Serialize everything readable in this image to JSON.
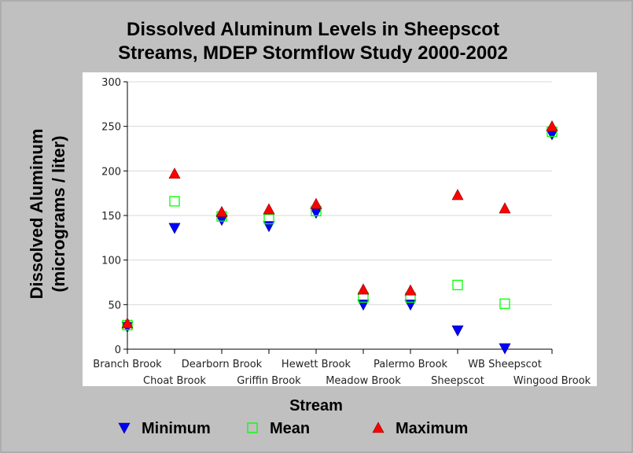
{
  "chart_data": {
    "type": "scatter",
    "title_line1": "Dissolved Aluminum Levels in Sheepscot",
    "title_line2": "Streams, MDEP Stormflow Study 2000-2002",
    "xlabel": "Stream",
    "ylabel_line1": "Dissolved Aluminum",
    "ylabel_line2": "(micrograms / liter)",
    "ylim": [
      0,
      300
    ],
    "yticks": [
      0,
      50,
      100,
      150,
      200,
      250,
      300
    ],
    "grid": true,
    "legend_placement": "bottom",
    "categories": [
      "Branch Brook",
      "Choat Brook",
      "Dearborn Brook",
      "Griffin Brook",
      "Hewett Brook",
      "Meadow Brook",
      "Palermo Brook",
      "Sheepscot",
      "WB Sheepscot",
      "Wingood Brook"
    ],
    "series": [
      {
        "name": "Minimum",
        "marker": "triangle-down",
        "color": "#0000ff",
        "values": [
          25,
          136,
          145,
          138,
          153,
          50,
          50,
          21,
          1,
          241
        ]
      },
      {
        "name": "Mean",
        "marker": "square-open",
        "color": "#00ff00",
        "values": [
          27,
          166,
          149,
          146,
          155,
          58,
          58,
          72,
          51,
          244
        ]
      },
      {
        "name": "Maximum",
        "marker": "triangle-up",
        "color": "#ff0000",
        "values": [
          29,
          197,
          154,
          157,
          163,
          67,
          66,
          173,
          158,
          250
        ]
      }
    ]
  }
}
